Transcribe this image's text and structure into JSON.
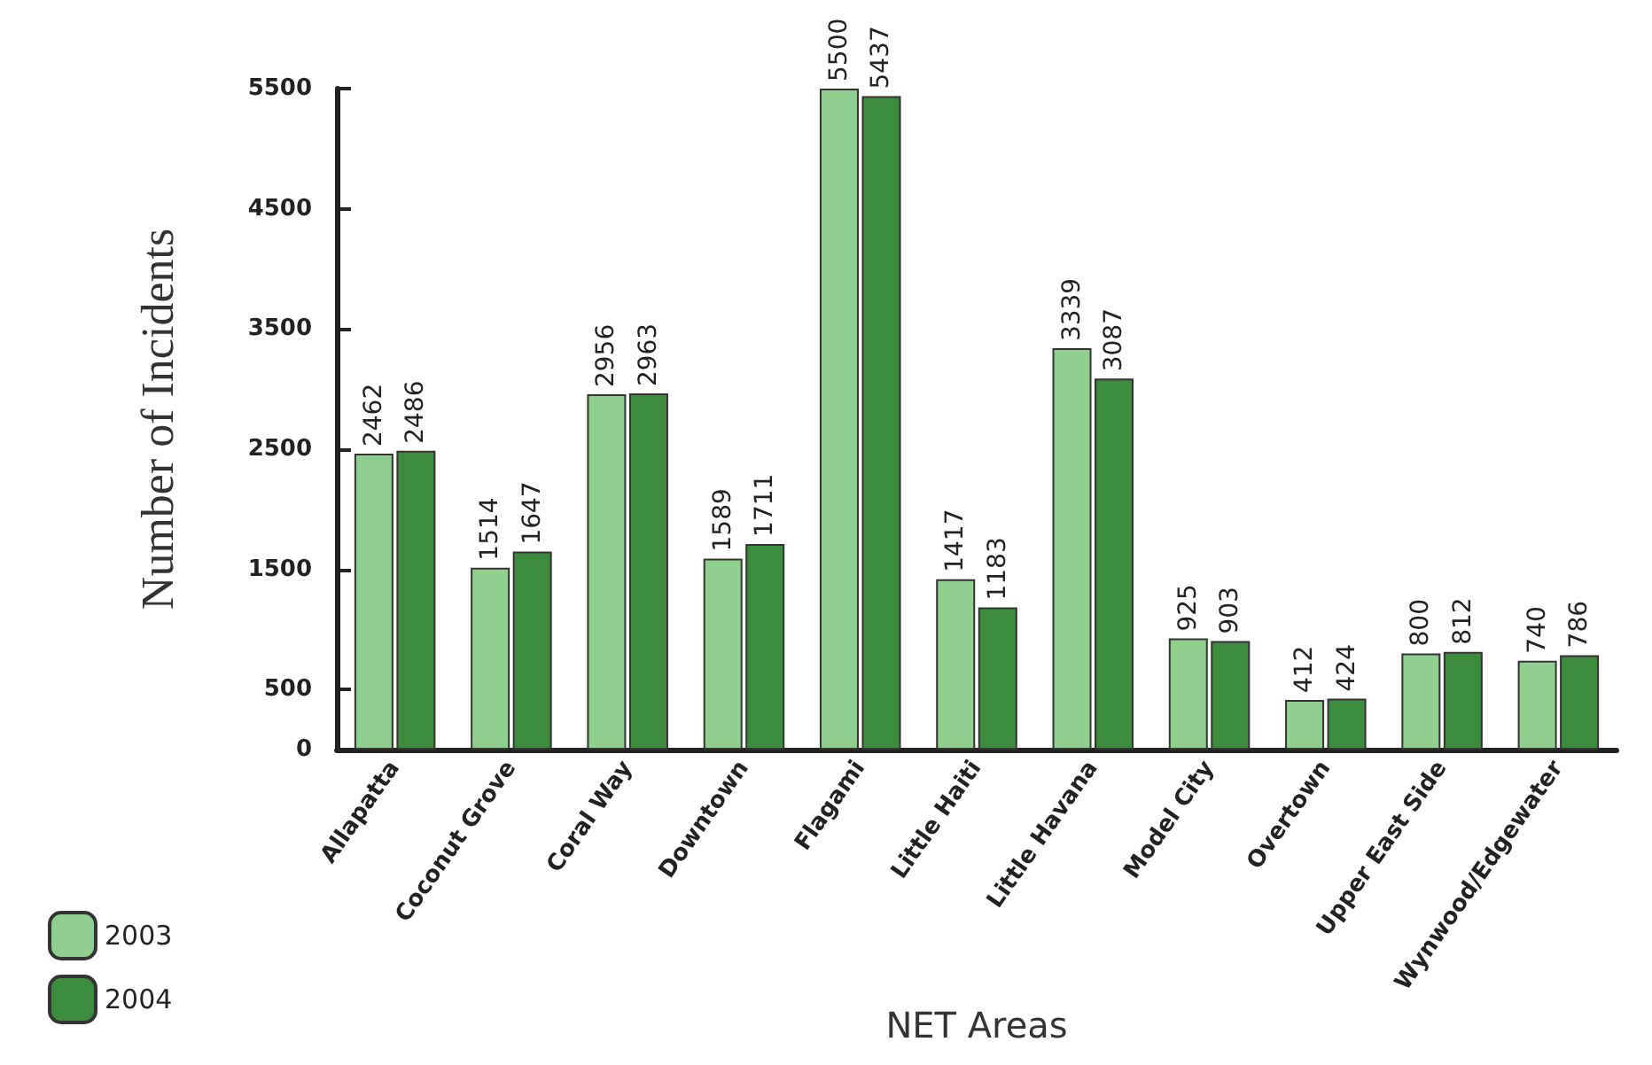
{
  "chart_data": {
    "type": "bar",
    "xlabel": "NET Areas",
    "ylabel": "Number of Incidents",
    "categories": [
      "Allapatta",
      "Coconut Grove",
      "Coral Way",
      "Downtown",
      "Flagami",
      "Little Haiti",
      "Little Havana",
      "Model City",
      "Overtown",
      "Upper East Side",
      "Wynwood/Edgewater"
    ],
    "series": [
      {
        "name": "2003",
        "color": "#8fd08f",
        "values": [
          2462,
          1514,
          2956,
          1589,
          5500,
          1417,
          3339,
          925,
          412,
          800,
          740
        ]
      },
      {
        "name": "2004",
        "color": "#3d8b3d",
        "values": [
          2486,
          1647,
          2963,
          1711,
          5437,
          1183,
          3087,
          903,
          424,
          812,
          786
        ]
      }
    ],
    "ylim": [
      0,
      5500
    ],
    "yticks": [
      0,
      500,
      1500,
      2500,
      3500,
      4500,
      5500
    ],
    "data_labels": true,
    "grid": false,
    "legend": "bottom left"
  }
}
